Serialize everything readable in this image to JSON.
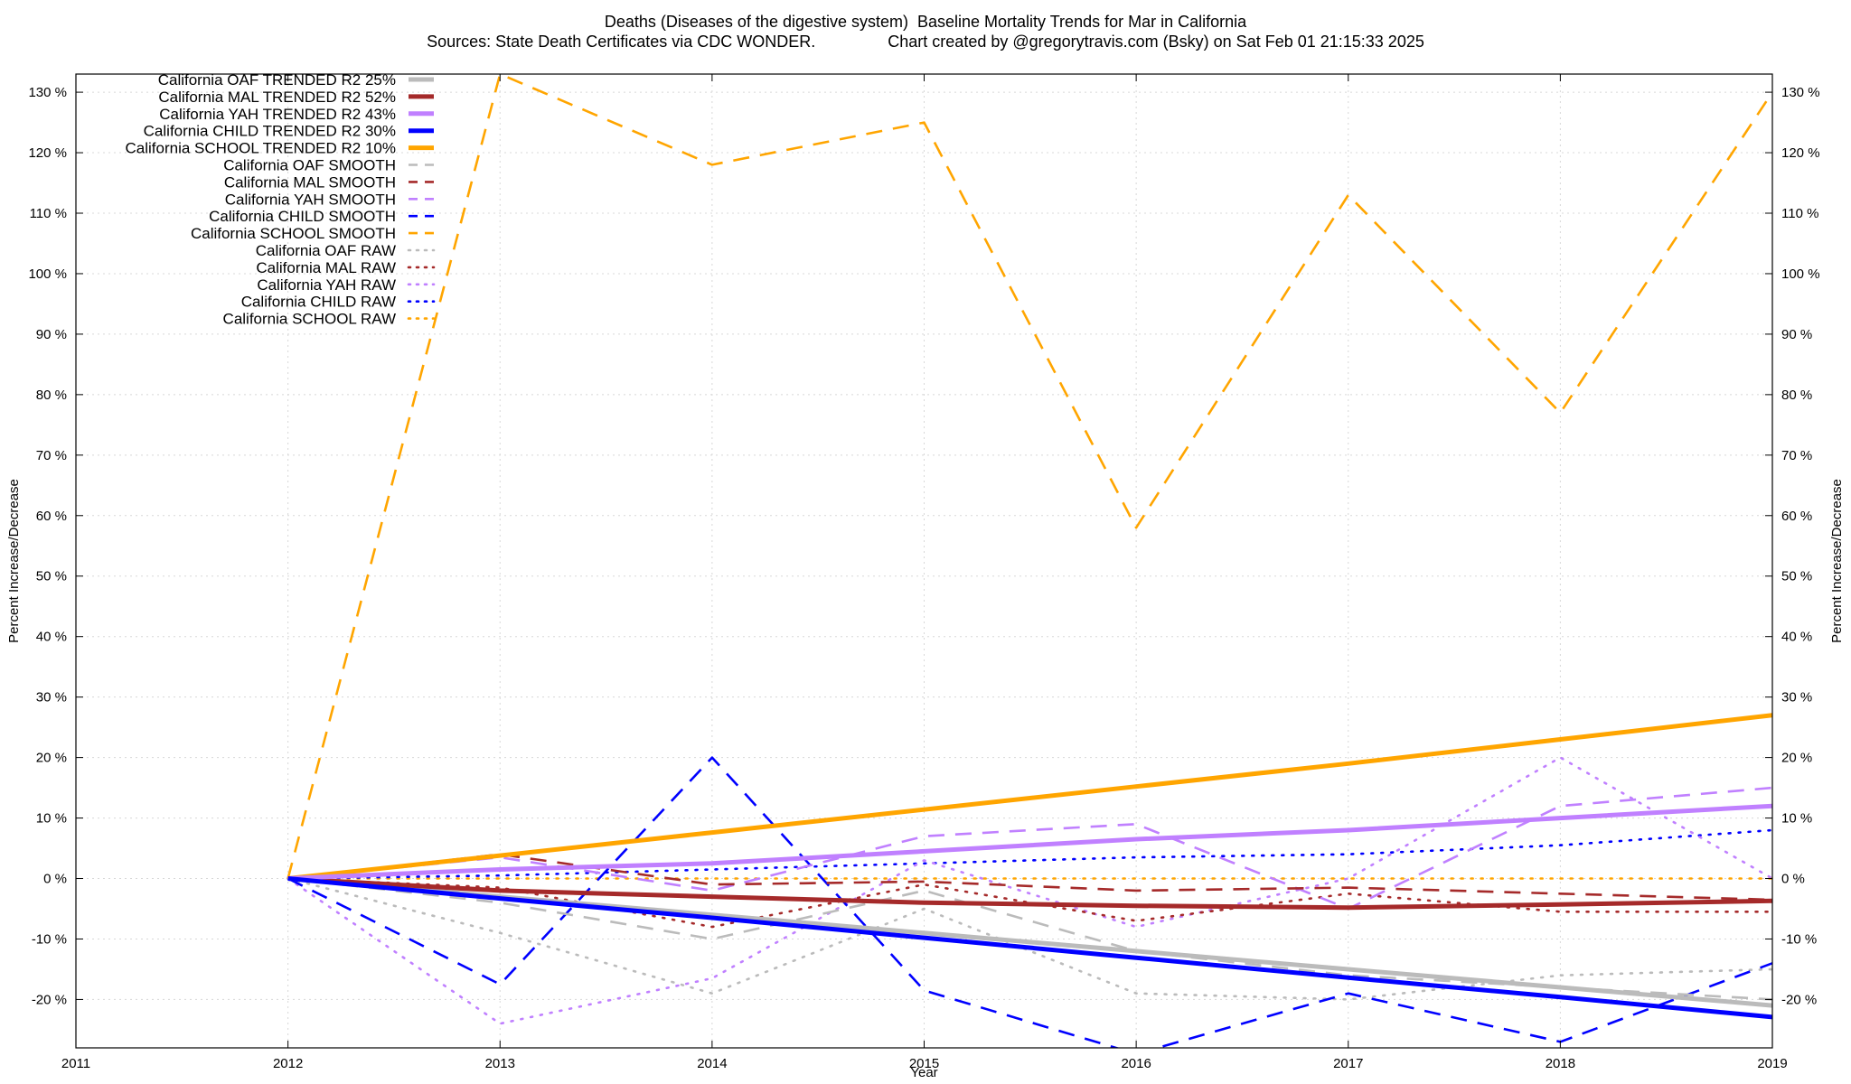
{
  "title_line1": "Deaths (Diseases of the digestive system)  Baseline Mortality Trends for Mar in California",
  "title_line2": "Sources: State Death Certificates via CDC WONDER.                Chart created by @gregorytravis.com (Bsky) on Sat Feb 01 21:15:33 2025",
  "chart_data": {
    "type": "line",
    "title": "Deaths (Diseases of the digestive system)  Baseline Mortality Trends for Mar in California",
    "subtitle": "Sources: State Death Certificates via CDC WONDER.                Chart created by @gregorytravis.com (Bsky) on Sat Feb 01 21:15:33 2025",
    "xlabel": "Year",
    "ylabel": "Percent Increase/Decrease",
    "y2label": "Percent Increase/Decrease",
    "xlim": [
      2011,
      2019
    ],
    "ylim": [
      -28,
      133
    ],
    "x_ticks": [
      "2011",
      "2012",
      "2013",
      "2014",
      "2015",
      "2016",
      "2017",
      "2018",
      "2019"
    ],
    "x_tick_values": [
      2011,
      2012,
      2013,
      2014,
      2015,
      2016,
      2017,
      2018,
      2019
    ],
    "y_ticks": [
      "-20 %",
      "-10 %",
      "0 %",
      "10 %",
      "20 %",
      "30 %",
      "40 %",
      "50 %",
      "60 %",
      "70 %",
      "80 %",
      "90 %",
      "100 %",
      "110 %",
      "120 %",
      "130 %"
    ],
    "y_tick_values": [
      -20,
      -10,
      0,
      10,
      20,
      30,
      40,
      50,
      60,
      70,
      80,
      90,
      100,
      110,
      120,
      130
    ],
    "grid": true,
    "legend_position": "top-left",
    "x": [
      2012,
      2013,
      2014,
      2015,
      2016,
      2017,
      2018,
      2019
    ],
    "series": [
      {
        "name": "California OAF TRENDED R2  25%",
        "style": "trend",
        "color": "#bbbbbb",
        "values": [
          0,
          -3,
          -6,
          -9,
          -12,
          -15,
          -18,
          -21
        ]
      },
      {
        "name": "California MAL TRENDED R2  52%",
        "style": "trend",
        "color": "#a52a2a",
        "values": [
          0,
          -2,
          -3,
          -4,
          -4.5,
          -4.8,
          -4.3,
          -3.7
        ]
      },
      {
        "name": "California YAH TRENDED R2  43%",
        "style": "trend",
        "color": "#c080ff",
        "values": [
          0,
          1.5,
          2.5,
          4.5,
          6.5,
          8,
          10,
          12
        ]
      },
      {
        "name": "California CHILD TRENDED R2  30%",
        "style": "trend",
        "color": "#0000ff",
        "values": [
          0,
          -3.3,
          -6.5,
          -9.8,
          -13.1,
          -16.4,
          -19.6,
          -22.9
        ]
      },
      {
        "name": "California SCHOOL TRENDED R2  10%",
        "style": "trend",
        "color": "#ffa500",
        "values": [
          0,
          3.8,
          7.6,
          11.4,
          15.2,
          19,
          23,
          27
        ]
      },
      {
        "name": "California OAF SMOOTH",
        "style": "smooth",
        "color": "#bbbbbb",
        "values": [
          0,
          -4,
          -10,
          -2,
          -12,
          -16,
          -18,
          -20
        ]
      },
      {
        "name": "California MAL SMOOTH",
        "style": "smooth",
        "color": "#a52a2a",
        "values": [
          0,
          4,
          -1,
          -0.5,
          -2,
          -1.5,
          -2.5,
          -3.5
        ]
      },
      {
        "name": "California YAH SMOOTH",
        "style": "smooth",
        "color": "#c080ff",
        "values": [
          0,
          3.5,
          -2,
          7,
          9,
          -5,
          12,
          15
        ]
      },
      {
        "name": "California CHILD SMOOTH",
        "style": "smooth",
        "color": "#0000ff",
        "values": [
          0,
          -17.5,
          20,
          -18.5,
          -29,
          -19,
          -27,
          -14
        ]
      },
      {
        "name": "California SCHOOL SMOOTH",
        "style": "smooth",
        "color": "#ffa500",
        "values": [
          0,
          133,
          118,
          125,
          58,
          113,
          77,
          130
        ]
      },
      {
        "name": "California OAF RAW",
        "style": "raw",
        "color": "#bbbbbb",
        "values": [
          0,
          -9,
          -19,
          -5,
          -19,
          -20,
          -16,
          -15
        ]
      },
      {
        "name": "California MAL RAW",
        "style": "raw",
        "color": "#a52a2a",
        "values": [
          0,
          -1.5,
          -8,
          -1,
          -7,
          -2.5,
          -5.5,
          -5.5
        ]
      },
      {
        "name": "California YAH RAW",
        "style": "raw",
        "color": "#c080ff",
        "values": [
          0,
          -24,
          -16.5,
          3,
          -8,
          0,
          20,
          0
        ]
      },
      {
        "name": "California CHILD RAW",
        "style": "raw",
        "color": "#0000ff",
        "values": [
          0,
          0.5,
          1.5,
          2.5,
          3.5,
          4,
          5.5,
          8
        ]
      },
      {
        "name": "California SCHOOL RAW",
        "style": "raw",
        "color": "#ffa500",
        "values": [
          0,
          0,
          0,
          0,
          0,
          0,
          0,
          0
        ]
      }
    ]
  }
}
